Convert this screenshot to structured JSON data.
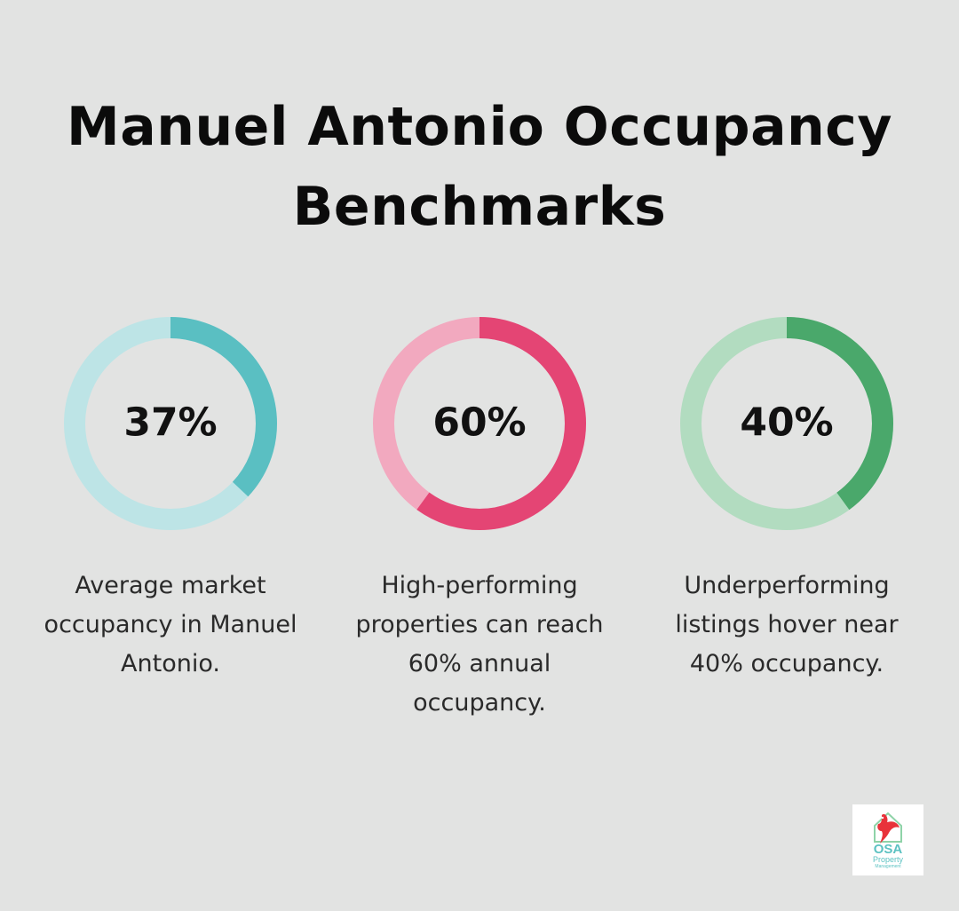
{
  "title_line1": "Manuel Antonio Occupancy",
  "title_line2": "Benchmarks",
  "chart_data": {
    "type": "donut",
    "items": [
      {
        "value": 37,
        "label": "37%",
        "description": [
          "Average market",
          "occupancy in Manuel",
          "Antonio."
        ],
        "fill_color": "#5abfc2",
        "track_color": "#bde4e6"
      },
      {
        "value": 60,
        "label": "60%",
        "description": [
          "High-performing",
          "properties can reach",
          "60% annual",
          "occupancy."
        ],
        "fill_color": "#e44574",
        "track_color": "#f2a9bf"
      },
      {
        "value": 40,
        "label": "40%",
        "description": [
          "Underperforming",
          "listings hover near",
          "40% occupancy."
        ],
        "fill_color": "#4aa86b",
        "track_color": "#b2dcc0"
      }
    ]
  },
  "logo": {
    "name": "OSA",
    "line1": "Property",
    "line2": "Management",
    "icon": "bird-house-icon"
  }
}
